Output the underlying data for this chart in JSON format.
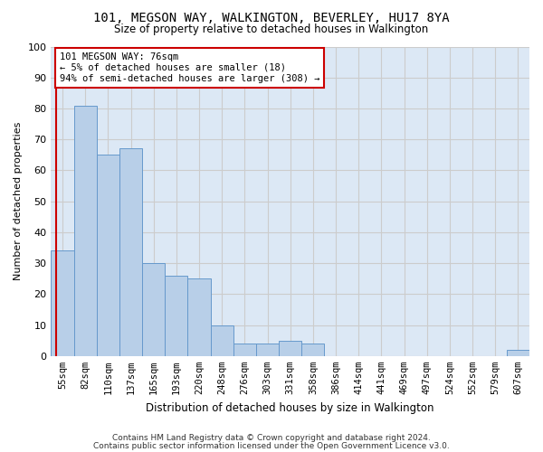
{
  "title": "101, MEGSON WAY, WALKINGTON, BEVERLEY, HU17 8YA",
  "subtitle": "Size of property relative to detached houses in Walkington",
  "xlabel": "Distribution of detached houses by size in Walkington",
  "ylabel": "Number of detached properties",
  "bin_labels": [
    "55sqm",
    "82sqm",
    "110sqm",
    "137sqm",
    "165sqm",
    "193sqm",
    "220sqm",
    "248sqm",
    "276sqm",
    "303sqm",
    "331sqm",
    "358sqm",
    "386sqm",
    "414sqm",
    "441sqm",
    "469sqm",
    "497sqm",
    "524sqm",
    "552sqm",
    "579sqm",
    "607sqm"
  ],
  "bar_values": [
    34,
    81,
    65,
    67,
    30,
    26,
    25,
    10,
    4,
    4,
    5,
    4,
    0,
    0,
    0,
    0,
    0,
    0,
    0,
    0,
    2
  ],
  "bar_color": "#b8cfe8",
  "bar_edge_color": "#6699cc",
  "annotation_text": "101 MEGSON WAY: 76sqm\n← 5% of detached houses are smaller (18)\n94% of semi-detached houses are larger (308) →",
  "annotation_box_color": "#ffffff",
  "annotation_box_edge_color": "#cc0000",
  "vline_color": "#cc0000",
  "ylim": [
    0,
    100
  ],
  "yticks": [
    0,
    10,
    20,
    30,
    40,
    50,
    60,
    70,
    80,
    90,
    100
  ],
  "grid_color": "#cccccc",
  "bg_color": "#dce8f5",
  "footer1": "Contains HM Land Registry data © Crown copyright and database right 2024.",
  "footer2": "Contains public sector information licensed under the Open Government Licence v3.0.",
  "vline_x": -0.28
}
